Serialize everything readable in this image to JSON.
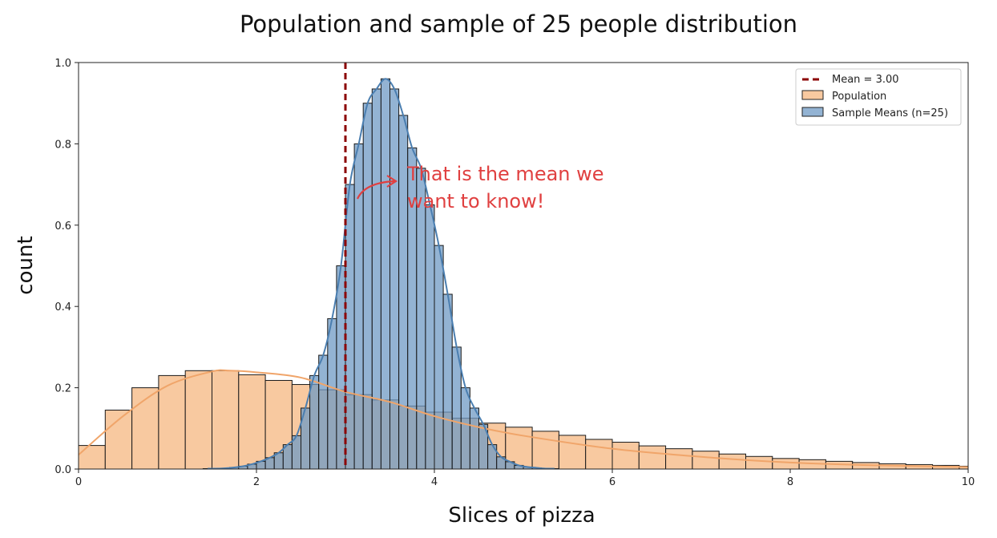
{
  "chart_data": {
    "type": "bar",
    "title": "Population and sample of 25 people distribution",
    "xlabel": "Slices of pizza",
    "ylabel": "count",
    "xlim": [
      0,
      10
    ],
    "ylim": [
      0,
      1.0
    ],
    "x_ticks": [
      "0",
      "2",
      "4",
      "6",
      "8",
      "10"
    ],
    "y_ticks": [
      "0.0",
      "0.2",
      "0.4",
      "0.6",
      "0.8",
      "1.0"
    ],
    "grid": false,
    "legend_position": "top-right",
    "mean_line": {
      "name": "Mean = 3.00",
      "x": 3.0,
      "color": "#8b0000"
    },
    "series": [
      {
        "name": "Population",
        "kind": "histogram",
        "bin_width": 0.3,
        "bin_start": 0.0,
        "color": "#f8c9a0",
        "kde_color": "#f0a56a",
        "values": [
          0.058,
          0.145,
          0.2,
          0.23,
          0.242,
          0.242,
          0.232,
          0.218,
          0.208,
          0.195,
          0.183,
          0.17,
          0.155,
          0.14,
          0.125,
          0.113,
          0.103,
          0.093,
          0.083,
          0.073,
          0.066,
          0.057,
          0.05,
          0.044,
          0.037,
          0.031,
          0.026,
          0.023,
          0.019,
          0.016,
          0.013,
          0.011,
          0.009,
          0.007
        ],
        "kde": [
          [
            0,
            0.035
          ],
          [
            0.5,
            0.13
          ],
          [
            1.0,
            0.205
          ],
          [
            1.5,
            0.24
          ],
          [
            1.7,
            0.242
          ],
          [
            2.0,
            0.238
          ],
          [
            2.5,
            0.225
          ],
          [
            3.0,
            0.19
          ],
          [
            3.5,
            0.165
          ],
          [
            4.0,
            0.13
          ],
          [
            4.5,
            0.103
          ],
          [
            5.0,
            0.082
          ],
          [
            6.0,
            0.05
          ],
          [
            7.0,
            0.03
          ],
          [
            8.0,
            0.016
          ],
          [
            9.0,
            0.009
          ],
          [
            10.0,
            0.005
          ]
        ]
      },
      {
        "name": "Sample Means (n=25)",
        "kind": "histogram",
        "bin_width": 0.1,
        "bin_start": 1.4,
        "color": "#6f9ac4",
        "kde_color": "#4a7eb0",
        "values": [
          0.001,
          0.001,
          0.002,
          0.004,
          0.007,
          0.012,
          0.019,
          0.028,
          0.04,
          0.06,
          0.082,
          0.15,
          0.23,
          0.28,
          0.37,
          0.5,
          0.7,
          0.8,
          0.9,
          0.935,
          0.96,
          0.935,
          0.87,
          0.79,
          0.74,
          0.65,
          0.55,
          0.43,
          0.3,
          0.2,
          0.15,
          0.11,
          0.06,
          0.03,
          0.018,
          0.009,
          0.005,
          0.003,
          0.001,
          0.001
        ]
      }
    ],
    "annotations": [
      {
        "text_lines": [
          "That is the mean we",
          "want to know!"
        ],
        "color": "#e04040"
      }
    ]
  }
}
